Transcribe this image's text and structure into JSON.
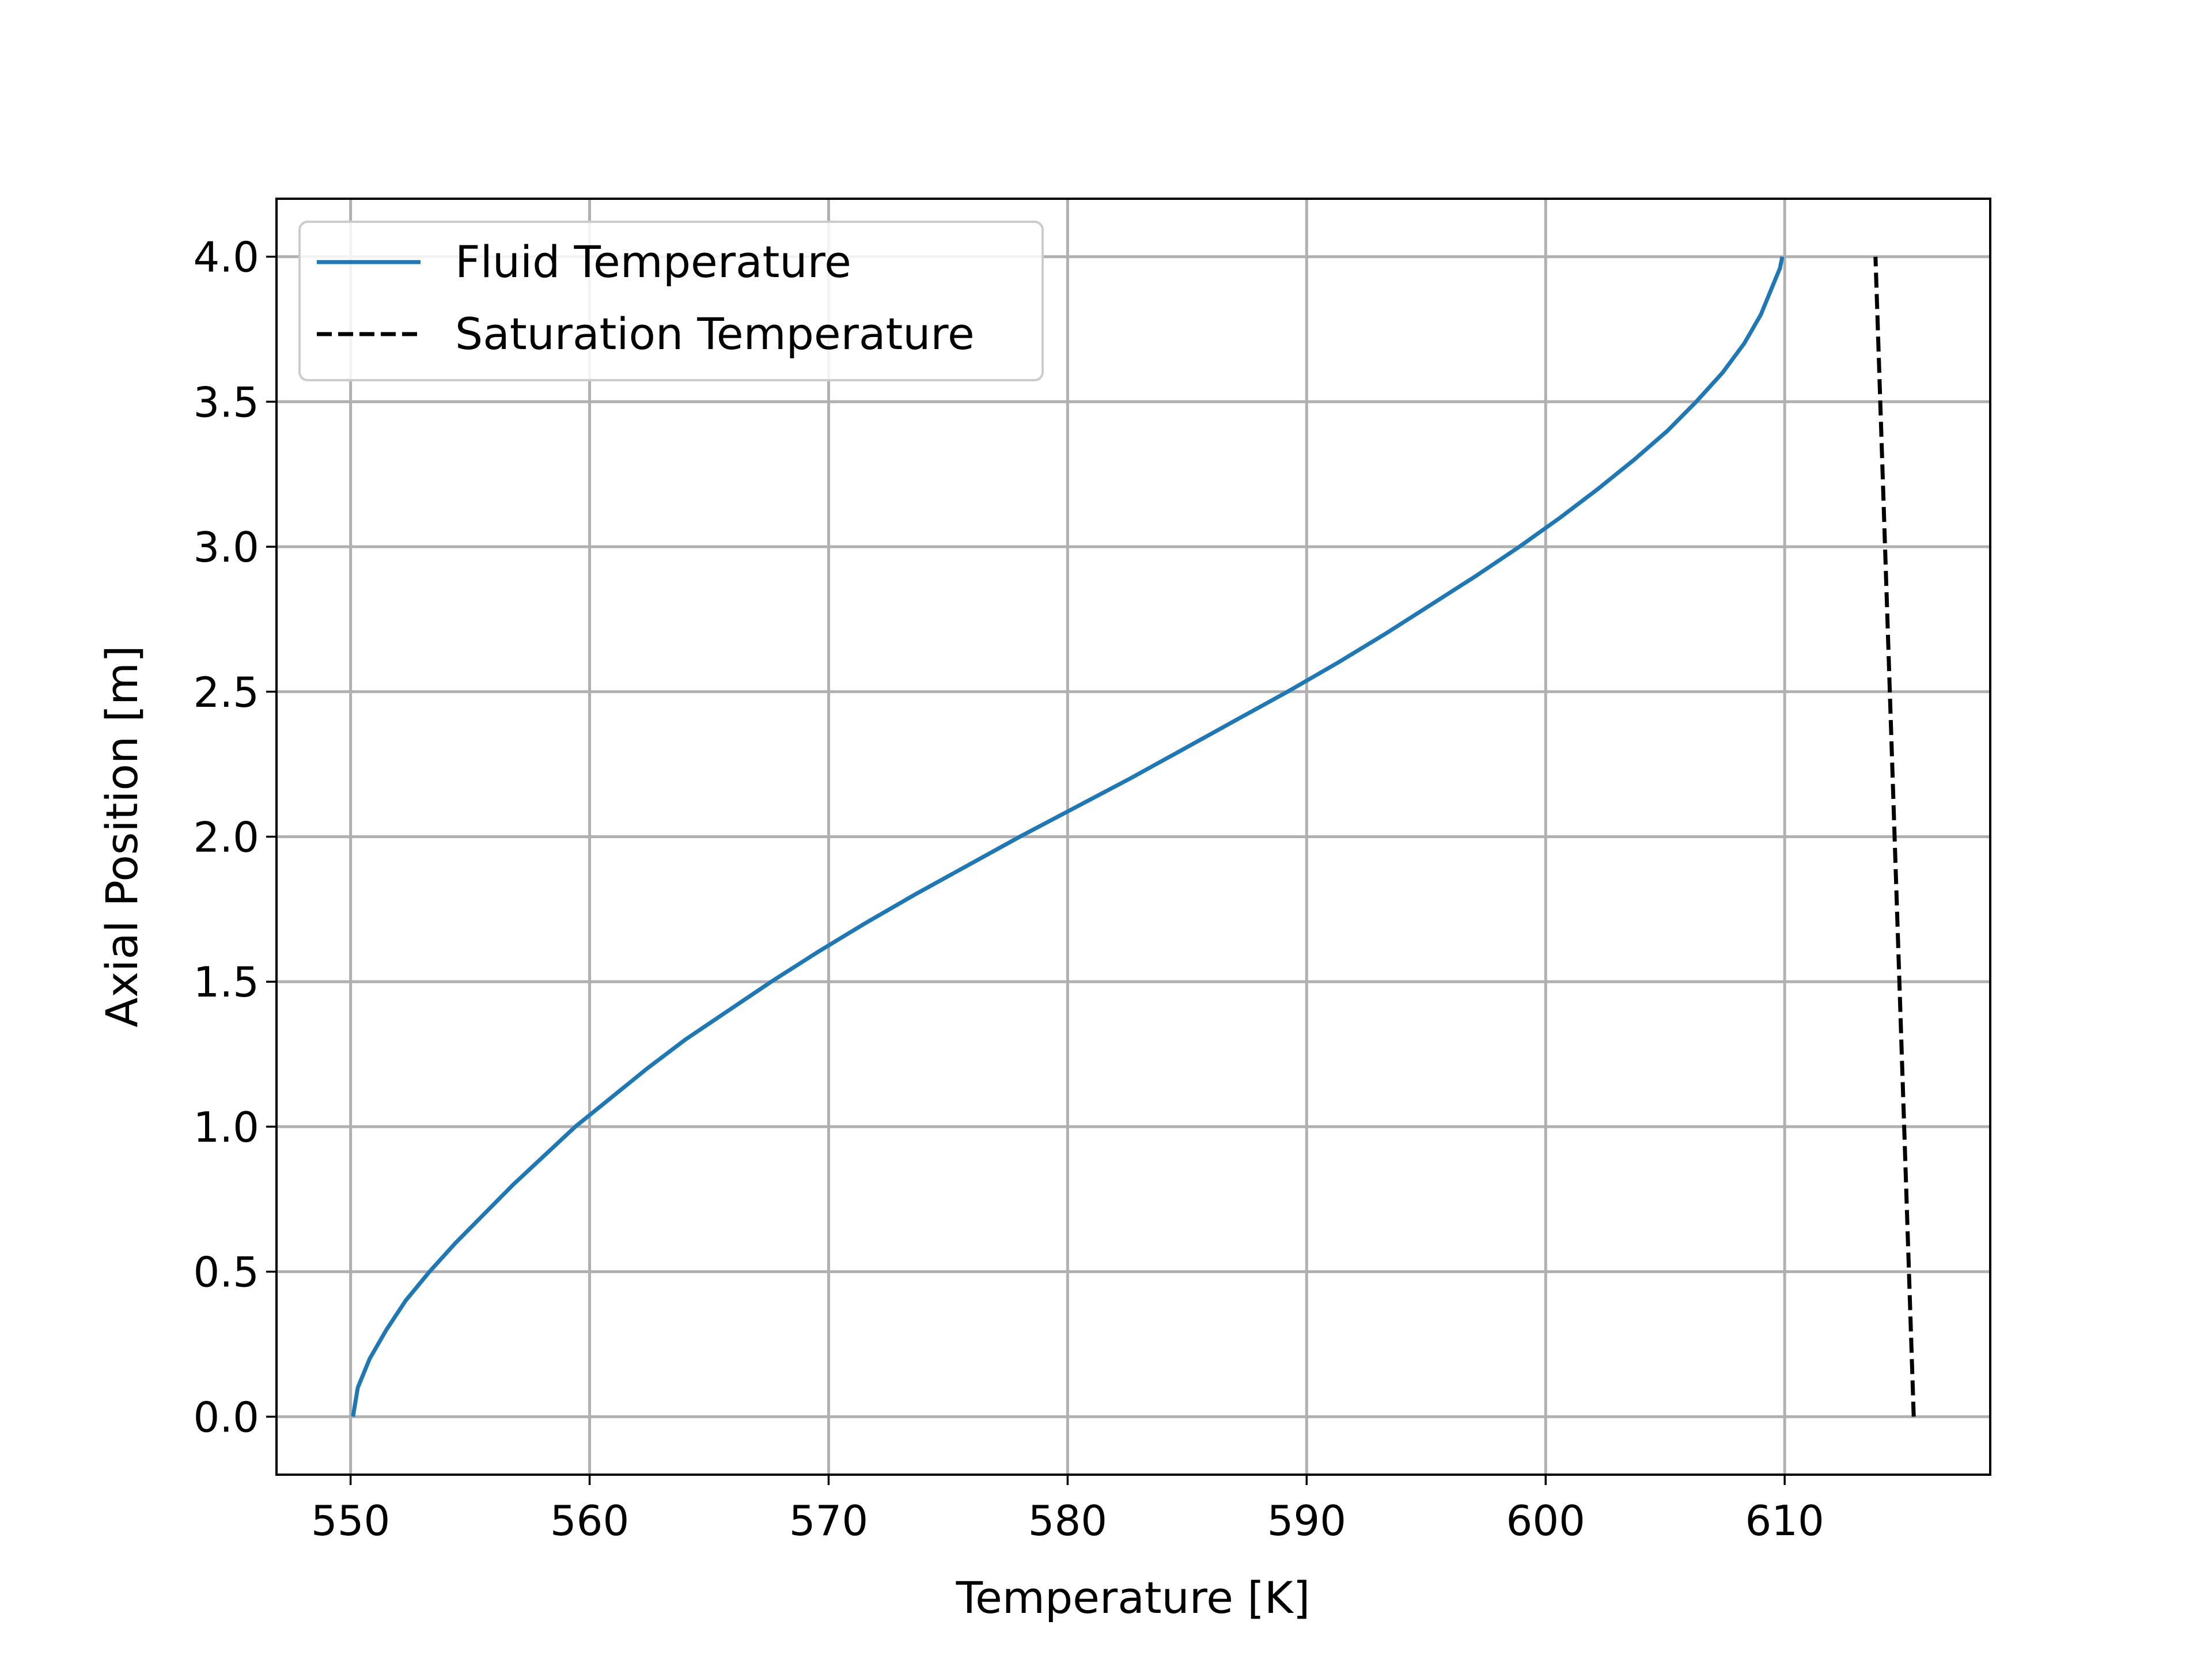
{
  "chart_data": {
    "type": "line",
    "title": "",
    "xlabel": "Temperature  [K]",
    "ylabel": "Axial Position  [m]",
    "xlim": [
      546.9,
      618.6
    ],
    "ylim": [
      -0.2,
      4.2
    ],
    "x_ticks": [
      "550",
      "560",
      "570",
      "580",
      "590",
      "600",
      "610"
    ],
    "y_ticks": [
      "0.0",
      "0.5",
      "1.0",
      "1.5",
      "2.0",
      "2.5",
      "3.0",
      "3.5",
      "4.0"
    ],
    "grid": true,
    "legend_position": "upper-left",
    "series": [
      {
        "name": "Fluid Temperature",
        "color": "#1f77b4",
        "style": "solid",
        "points": [
          [
            550.1,
            0.0
          ],
          [
            550.3,
            0.1
          ],
          [
            550.8,
            0.2
          ],
          [
            551.5,
            0.3
          ],
          [
            552.3,
            0.4
          ],
          [
            553.3,
            0.5
          ],
          [
            554.4,
            0.6
          ],
          [
            555.6,
            0.7
          ],
          [
            556.8,
            0.8
          ],
          [
            558.1,
            0.9
          ],
          [
            559.4,
            1.0
          ],
          [
            560.9,
            1.1
          ],
          [
            562.4,
            1.2
          ],
          [
            564.0,
            1.3
          ],
          [
            565.8,
            1.4
          ],
          [
            567.6,
            1.5
          ],
          [
            569.5,
            1.6
          ],
          [
            571.5,
            1.7
          ],
          [
            573.6,
            1.8
          ],
          [
            575.8,
            1.9
          ],
          [
            578.0,
            2.0
          ],
          [
            580.3,
            2.1
          ],
          [
            582.6,
            2.2
          ],
          [
            584.8,
            2.3
          ],
          [
            587.0,
            2.4
          ],
          [
            589.2,
            2.5
          ],
          [
            591.3,
            2.6
          ],
          [
            593.3,
            2.7
          ],
          [
            595.2,
            2.8
          ],
          [
            597.1,
            2.9
          ],
          [
            598.9,
            3.0
          ],
          [
            600.6,
            3.1
          ],
          [
            602.2,
            3.2
          ],
          [
            603.7,
            3.3
          ],
          [
            605.1,
            3.4
          ],
          [
            606.3,
            3.5
          ],
          [
            607.4,
            3.6
          ],
          [
            608.3,
            3.7
          ],
          [
            609.0,
            3.8
          ],
          [
            609.5,
            3.9
          ],
          [
            609.8,
            3.96
          ],
          [
            609.9,
            4.0
          ]
        ]
      },
      {
        "name": "Saturation Temperature",
        "color": "#000000",
        "style": "dashed",
        "points": [
          [
            615.4,
            0.0
          ],
          [
            613.8,
            4.0
          ]
        ]
      }
    ]
  }
}
